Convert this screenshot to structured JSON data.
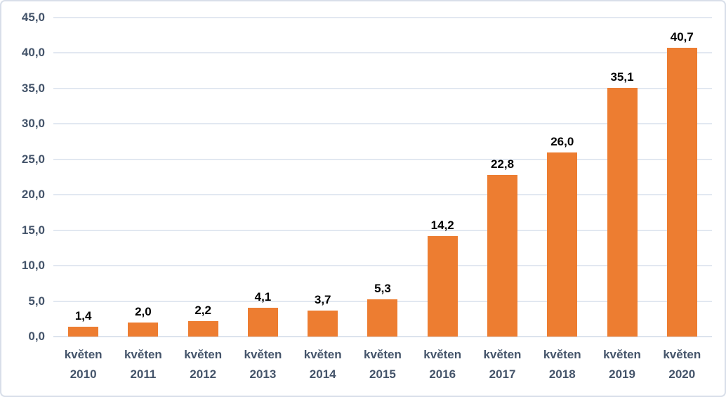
{
  "chart_data": {
    "type": "bar",
    "title": "",
    "xlabel": "",
    "ylabel": "",
    "categories": [
      "květen 2010",
      "květen 2011",
      "květen 2012",
      "květen 2013",
      "květen 2014",
      "květen 2015",
      "květen 2016",
      "květen 2017",
      "květen 2018",
      "květen 2019",
      "květen 2020"
    ],
    "values": [
      1.4,
      2.0,
      2.2,
      4.1,
      3.7,
      5.3,
      14.2,
      22.8,
      26.0,
      35.1,
      40.7
    ],
    "value_labels": [
      "1,4",
      "2,0",
      "2,2",
      "4,1",
      "3,7",
      "5,3",
      "14,2",
      "22,8",
      "26,0",
      "35,1",
      "40,7"
    ],
    "y_ticks": {
      "values": [
        0,
        5,
        10,
        15,
        20,
        25,
        30,
        35,
        40,
        45
      ],
      "labels": [
        "0,0",
        "5,0",
        "10,0",
        "15,0",
        "20,0",
        "25,0",
        "30,0",
        "35,0",
        "40,0",
        "45,0"
      ]
    },
    "ylim": [
      0,
      45
    ],
    "grid": true,
    "legend": "none",
    "colors": {
      "bar": "#ED7D31",
      "value_label": "#000000",
      "axis_text": "#44546A",
      "gridline": "#E2E8F1",
      "frame_border": "#D9DFE9",
      "background": "#FFFFFF"
    }
  }
}
